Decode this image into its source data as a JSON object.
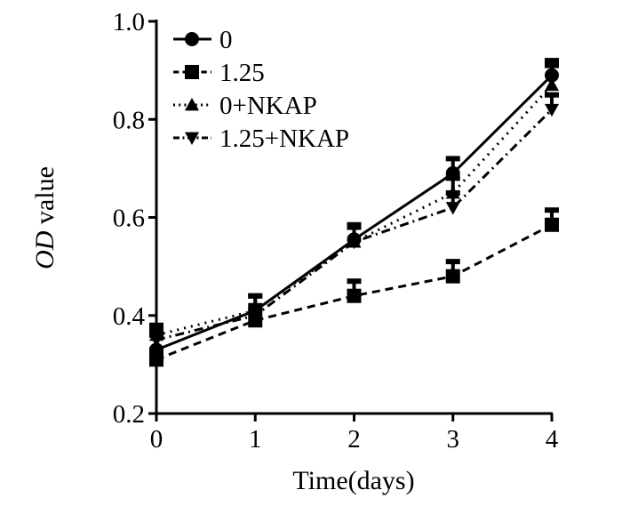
{
  "chart_data": {
    "type": "line",
    "title": "",
    "xlabel": "Time(days)",
    "ylabel_italic": "OD",
    "ylabel_rest": " value",
    "x": [
      0,
      1,
      2,
      3,
      4
    ],
    "xlim": [
      0,
      4
    ],
    "ylim": [
      0.2,
      1.0
    ],
    "xticks": [
      "0",
      "1",
      "2",
      "3",
      "4"
    ],
    "yticks": [
      "0.2",
      "0.4",
      "0.6",
      "0.8",
      "1.0"
    ],
    "grid": false,
    "legend_position": "top-left",
    "series": [
      {
        "name": "0",
        "marker": "circle",
        "dash": "",
        "values": [
          0.33,
          0.41,
          0.555,
          0.69,
          0.89
        ],
        "error": [
          0.03,
          0.03,
          0.03,
          0.03,
          0.03
        ]
      },
      {
        "name": "1.25",
        "marker": "square",
        "dash": "9,6",
        "values": [
          0.31,
          0.39,
          0.44,
          0.48,
          0.585
        ],
        "error": [
          0.02,
          0.02,
          0.03,
          0.03,
          0.03
        ]
      },
      {
        "name": "0+NKAP",
        "marker": "triangle-up",
        "dash": "2,6",
        "values": [
          0.36,
          0.41,
          0.55,
          0.65,
          0.87
        ],
        "error": [
          0.02,
          0.03,
          0.03,
          0.03,
          0.04
        ]
      },
      {
        "name": "1.25+NKAP",
        "marker": "triangle-down",
        "dash": "10,5,2,5",
        "values": [
          0.35,
          0.4,
          0.55,
          0.62,
          0.82
        ],
        "error": [
          0.02,
          0.02,
          0.03,
          0.03,
          0.03
        ]
      }
    ]
  }
}
